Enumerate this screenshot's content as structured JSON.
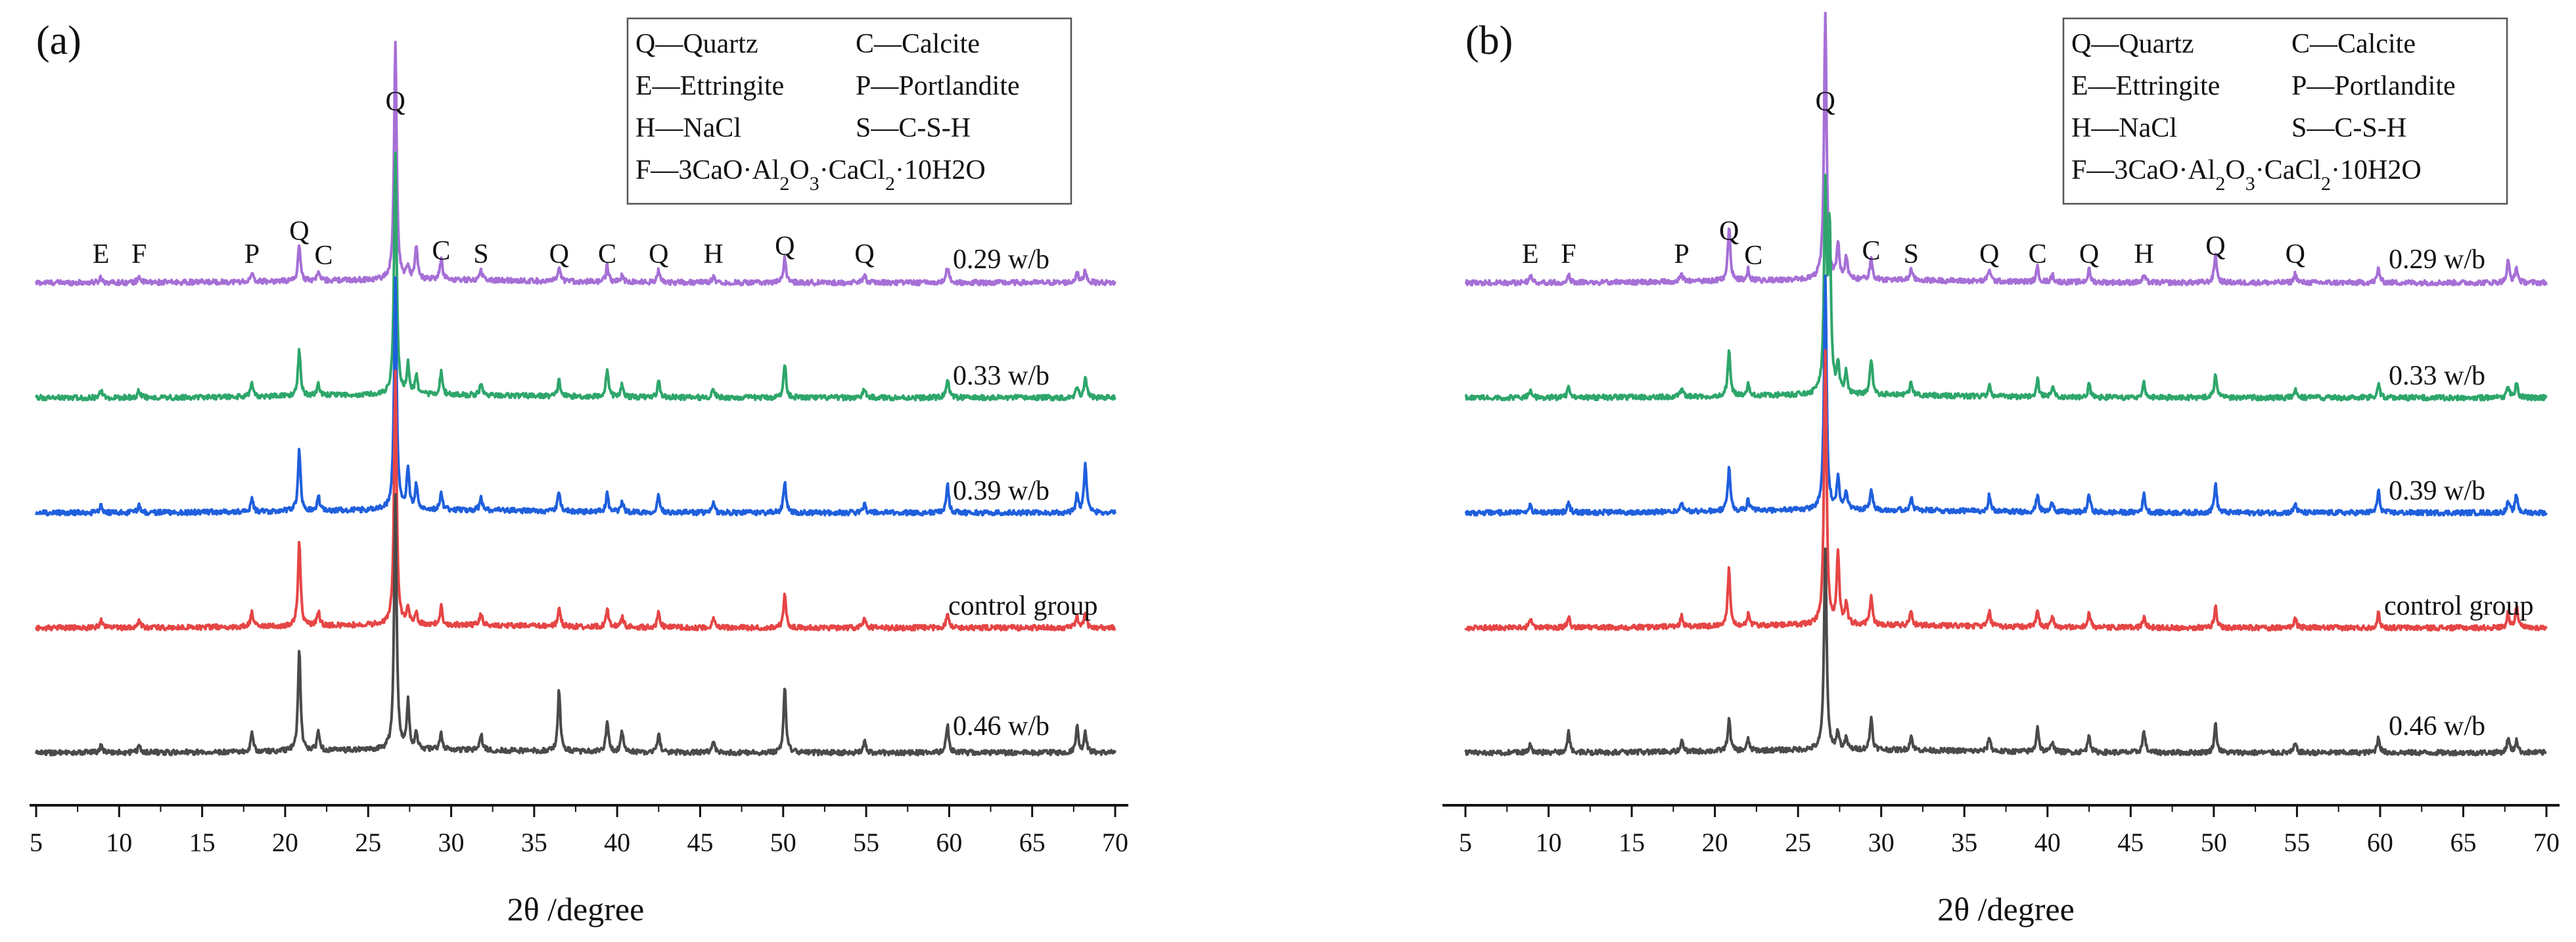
{
  "chart_data": [
    {
      "type": "line",
      "panel_label": "(a)",
      "xlabel": "2θ /degree",
      "ylabel": "",
      "xlim": [
        5,
        70
      ],
      "xticks": [
        5,
        10,
        15,
        20,
        25,
        30,
        35,
        40,
        45,
        50,
        55,
        60,
        65,
        70
      ],
      "legend": [
        "Q—Quartz",
        "C—Calcite",
        "E—Ettringite",
        "P—Portlandite",
        "H—NaCl",
        "S—C-S-H",
        "F—3CaO·Al2O3·CaCl2·10H2O"
      ],
      "legend_position": "top-right",
      "series": [
        {
          "name": "0.29 w/b",
          "color": "#a66fd6",
          "peaks": [
            [
              8.9,
              0.15
            ],
            [
              11.2,
              0.18
            ],
            [
              18.0,
              0.2
            ],
            [
              20.85,
              1.0
            ],
            [
              22.0,
              0.25
            ],
            [
              26.64,
              6.6
            ],
            [
              27.4,
              0.35
            ],
            [
              27.9,
              0.9
            ],
            [
              29.4,
              0.6
            ],
            [
              31.8,
              0.3
            ],
            [
              36.5,
              0.35
            ],
            [
              39.4,
              0.45
            ],
            [
              40.3,
              0.2
            ],
            [
              42.5,
              0.35
            ],
            [
              45.8,
              0.2
            ],
            [
              50.1,
              0.7
            ],
            [
              54.9,
              0.25
            ],
            [
              59.9,
              0.45
            ],
            [
              67.7,
              0.3
            ],
            [
              68.2,
              0.35
            ]
          ]
        },
        {
          "name": "0.33 w/b",
          "color": "#2ea66b",
          "peaks": [
            [
              8.9,
              0.2
            ],
            [
              11.2,
              0.2
            ],
            [
              18.0,
              0.35
            ],
            [
              20.85,
              1.3
            ],
            [
              22.0,
              0.35
            ],
            [
              26.64,
              6.7
            ],
            [
              27.4,
              0.8
            ],
            [
              27.9,
              0.55
            ],
            [
              29.4,
              0.65
            ],
            [
              31.8,
              0.35
            ],
            [
              36.5,
              0.45
            ],
            [
              39.4,
              0.8
            ],
            [
              40.3,
              0.35
            ],
            [
              42.5,
              0.45
            ],
            [
              45.8,
              0.25
            ],
            [
              50.1,
              0.95
            ],
            [
              54.9,
              0.25
            ],
            [
              59.9,
              0.55
            ],
            [
              67.7,
              0.3
            ],
            [
              68.2,
              0.6
            ]
          ]
        },
        {
          "name": "0.39 w/b",
          "color": "#1f5fdd",
          "peaks": [
            [
              8.9,
              0.2
            ],
            [
              11.2,
              0.2
            ],
            [
              18.0,
              0.35
            ],
            [
              20.85,
              1.7
            ],
            [
              22.0,
              0.4
            ],
            [
              26.64,
              6.4
            ],
            [
              27.4,
              1.1
            ],
            [
              27.9,
              0.7
            ],
            [
              29.4,
              0.45
            ],
            [
              31.8,
              0.35
            ],
            [
              36.5,
              0.55
            ],
            [
              39.4,
              0.5
            ],
            [
              40.3,
              0.3
            ],
            [
              42.5,
              0.5
            ],
            [
              45.8,
              0.25
            ],
            [
              50.1,
              0.9
            ],
            [
              54.9,
              0.25
            ],
            [
              59.9,
              0.8
            ],
            [
              67.7,
              0.5
            ],
            [
              68.2,
              1.4
            ]
          ]
        },
        {
          "name": "control group",
          "color": "#e64545",
          "peaks": [
            [
              8.9,
              0.2
            ],
            [
              11.2,
              0.2
            ],
            [
              18.0,
              0.4
            ],
            [
              20.85,
              2.4
            ],
            [
              22.0,
              0.4
            ],
            [
              26.64,
              7.0
            ],
            [
              27.4,
              0.45
            ],
            [
              27.9,
              0.35
            ],
            [
              29.4,
              0.5
            ],
            [
              31.8,
              0.35
            ],
            [
              36.5,
              0.55
            ],
            [
              39.4,
              0.5
            ],
            [
              40.3,
              0.3
            ],
            [
              42.5,
              0.4
            ],
            [
              45.8,
              0.25
            ],
            [
              50.1,
              0.95
            ],
            [
              54.9,
              0.25
            ],
            [
              59.9,
              0.45
            ],
            [
              67.7,
              0.3
            ],
            [
              68.2,
              0.4
            ]
          ]
        },
        {
          "name": "0.46 w/b",
          "color": "#4a4a4a",
          "peaks": [
            [
              8.9,
              0.2
            ],
            [
              11.2,
              0.2
            ],
            [
              18.0,
              0.5
            ],
            [
              20.85,
              2.8
            ],
            [
              22.0,
              0.55
            ],
            [
              26.64,
              7.0
            ],
            [
              27.4,
              1.3
            ],
            [
              27.9,
              0.5
            ],
            [
              29.4,
              0.45
            ],
            [
              31.8,
              0.45
            ],
            [
              36.5,
              1.7
            ],
            [
              39.4,
              0.9
            ],
            [
              40.3,
              0.55
            ],
            [
              42.5,
              0.55
            ],
            [
              45.8,
              0.3
            ],
            [
              50.1,
              1.8
            ],
            [
              54.9,
              0.3
            ],
            [
              59.9,
              0.8
            ],
            [
              67.7,
              0.75
            ],
            [
              68.2,
              0.6
            ]
          ]
        }
      ],
      "annotations": [
        {
          "text": "E",
          "x": 8.9
        },
        {
          "text": "F",
          "x": 11.2
        },
        {
          "text": "P",
          "x": 18.0
        },
        {
          "text": "Q",
          "x": 20.85
        },
        {
          "text": "C",
          "x": 22.0
        },
        {
          "text": "Q",
          "x": 26.64,
          "top": true
        },
        {
          "text": "C",
          "x": 29.4
        },
        {
          "text": "S",
          "x": 31.8
        },
        {
          "text": "Q",
          "x": 36.5
        },
        {
          "text": "C",
          "x": 39.4
        },
        {
          "text": "Q",
          "x": 42.5
        },
        {
          "text": "H",
          "x": 45.8
        },
        {
          "text": "Q",
          "x": 50.1
        },
        {
          "text": "Q",
          "x": 54.9
        }
      ]
    },
    {
      "type": "line",
      "panel_label": "(b)",
      "xlabel": "2θ /degree",
      "ylabel": "",
      "xlim": [
        5,
        70
      ],
      "xticks": [
        5,
        10,
        15,
        20,
        25,
        30,
        35,
        40,
        45,
        50,
        55,
        60,
        65,
        70
      ],
      "legend": [
        "Q—Quartz",
        "C—Calcite",
        "E—Ettringite",
        "P—Portlandite",
        "H—NaCl",
        "S—C-S-H",
        "F—3CaO·Al2O3·CaCl2·10H2O"
      ],
      "legend_position": "top-right",
      "series": [
        {
          "name": "0.29 w/b",
          "color": "#a66fd6",
          "peaks": [
            [
              8.9,
              0.2
            ],
            [
              11.2,
              0.25
            ],
            [
              18.0,
              0.2
            ],
            [
              20.85,
              1.5
            ],
            [
              22.0,
              0.3
            ],
            [
              26.64,
              7.4
            ],
            [
              27.4,
              1.0
            ],
            [
              27.9,
              0.6
            ],
            [
              29.4,
              0.6
            ],
            [
              31.8,
              0.3
            ],
            [
              36.5,
              0.35
            ],
            [
              39.4,
              0.4
            ],
            [
              40.3,
              0.2
            ],
            [
              42.5,
              0.35
            ],
            [
              45.8,
              0.2
            ],
            [
              50.1,
              0.8
            ],
            [
              54.9,
              0.25
            ],
            [
              59.9,
              0.4
            ],
            [
              67.7,
              0.6
            ],
            [
              68.2,
              0.4
            ]
          ]
        },
        {
          "name": "0.33 w/b",
          "color": "#2ea66b",
          "peaks": [
            [
              8.9,
              0.2
            ],
            [
              11.2,
              0.25
            ],
            [
              18.0,
              0.2
            ],
            [
              20.85,
              1.3
            ],
            [
              22.0,
              0.3
            ],
            [
              26.64,
              5.6
            ],
            [
              26.9,
              4.5
            ],
            [
              27.4,
              0.8
            ],
            [
              27.9,
              0.6
            ],
            [
              29.4,
              1.0
            ],
            [
              31.8,
              0.35
            ],
            [
              36.5,
              0.3
            ],
            [
              39.4,
              0.5
            ],
            [
              40.3,
              0.3
            ],
            [
              42.5,
              0.35
            ],
            [
              45.8,
              0.4
            ],
            [
              50.1,
              0.6
            ],
            [
              54.9,
              0.2
            ],
            [
              59.9,
              0.4
            ],
            [
              67.7,
              0.3
            ],
            [
              68.2,
              0.4
            ]
          ]
        },
        {
          "name": "0.39 w/b",
          "color": "#1f5fdd",
          "peaks": [
            [
              8.9,
              0.2
            ],
            [
              11.2,
              0.3
            ],
            [
              18.0,
              0.25
            ],
            [
              20.85,
              1.2
            ],
            [
              22.0,
              0.3
            ],
            [
              26.64,
              6.5
            ],
            [
              27.4,
              0.9
            ],
            [
              27.9,
              0.5
            ],
            [
              29.4,
              0.6
            ],
            [
              31.8,
              0.35
            ],
            [
              36.5,
              0.45
            ],
            [
              39.4,
              0.5
            ],
            [
              40.3,
              0.3
            ],
            [
              42.5,
              0.5
            ],
            [
              45.8,
              0.5
            ],
            [
              50.1,
              0.8
            ],
            [
              54.9,
              0.25
            ],
            [
              59.9,
              0.6
            ],
            [
              67.7,
              0.3
            ],
            [
              68.2,
              0.5
            ]
          ]
        },
        {
          "name": "control group",
          "color": "#e64545",
          "peaks": [
            [
              8.9,
              0.25
            ],
            [
              11.2,
              0.3
            ],
            [
              18.0,
              0.3
            ],
            [
              20.85,
              1.6
            ],
            [
              22.0,
              0.3
            ],
            [
              26.64,
              7.6
            ],
            [
              27.4,
              2.0
            ],
            [
              27.9,
              0.6
            ],
            [
              29.4,
              0.8
            ],
            [
              31.8,
              0.4
            ],
            [
              36.5,
              0.4
            ],
            [
              39.4,
              0.45
            ],
            [
              40.3,
              0.3
            ],
            [
              42.5,
              0.4
            ],
            [
              45.8,
              0.3
            ],
            [
              50.1,
              0.6
            ],
            [
              54.9,
              0.25
            ],
            [
              59.9,
              0.4
            ],
            [
              67.7,
              0.4
            ],
            [
              68.2,
              0.6
            ]
          ]
        },
        {
          "name": "0.46 w/b",
          "color": "#4a4a4a",
          "peaks": [
            [
              8.9,
              0.2
            ],
            [
              11.2,
              0.6
            ],
            [
              18.0,
              0.3
            ],
            [
              20.85,
              0.9
            ],
            [
              22.0,
              0.3
            ],
            [
              26.64,
              5.6
            ],
            [
              27.4,
              0.5
            ],
            [
              27.9,
              0.3
            ],
            [
              29.4,
              0.9
            ],
            [
              31.8,
              0.4
            ],
            [
              36.5,
              0.4
            ],
            [
              39.4,
              0.7
            ],
            [
              40.3,
              0.3
            ],
            [
              42.5,
              0.5
            ],
            [
              45.8,
              0.6
            ],
            [
              50.1,
              0.8
            ],
            [
              54.9,
              0.25
            ],
            [
              59.9,
              0.45
            ],
            [
              67.7,
              0.4
            ],
            [
              68.2,
              0.35
            ]
          ]
        }
      ],
      "annotations": [
        {
          "text": "E",
          "x": 8.9
        },
        {
          "text": "F",
          "x": 11.2
        },
        {
          "text": "P",
          "x": 18.0
        },
        {
          "text": "Q",
          "x": 20.85
        },
        {
          "text": "C",
          "x": 22.0
        },
        {
          "text": "Q",
          "x": 26.64,
          "top": true
        },
        {
          "text": "C",
          "x": 29.4
        },
        {
          "text": "S",
          "x": 31.8
        },
        {
          "text": "Q",
          "x": 36.5
        },
        {
          "text": "C",
          "x": 39.4
        },
        {
          "text": "Q",
          "x": 42.5
        },
        {
          "text": "H",
          "x": 45.8
        },
        {
          "text": "Q",
          "x": 50.1
        },
        {
          "text": "Q",
          "x": 54.9
        }
      ]
    }
  ]
}
